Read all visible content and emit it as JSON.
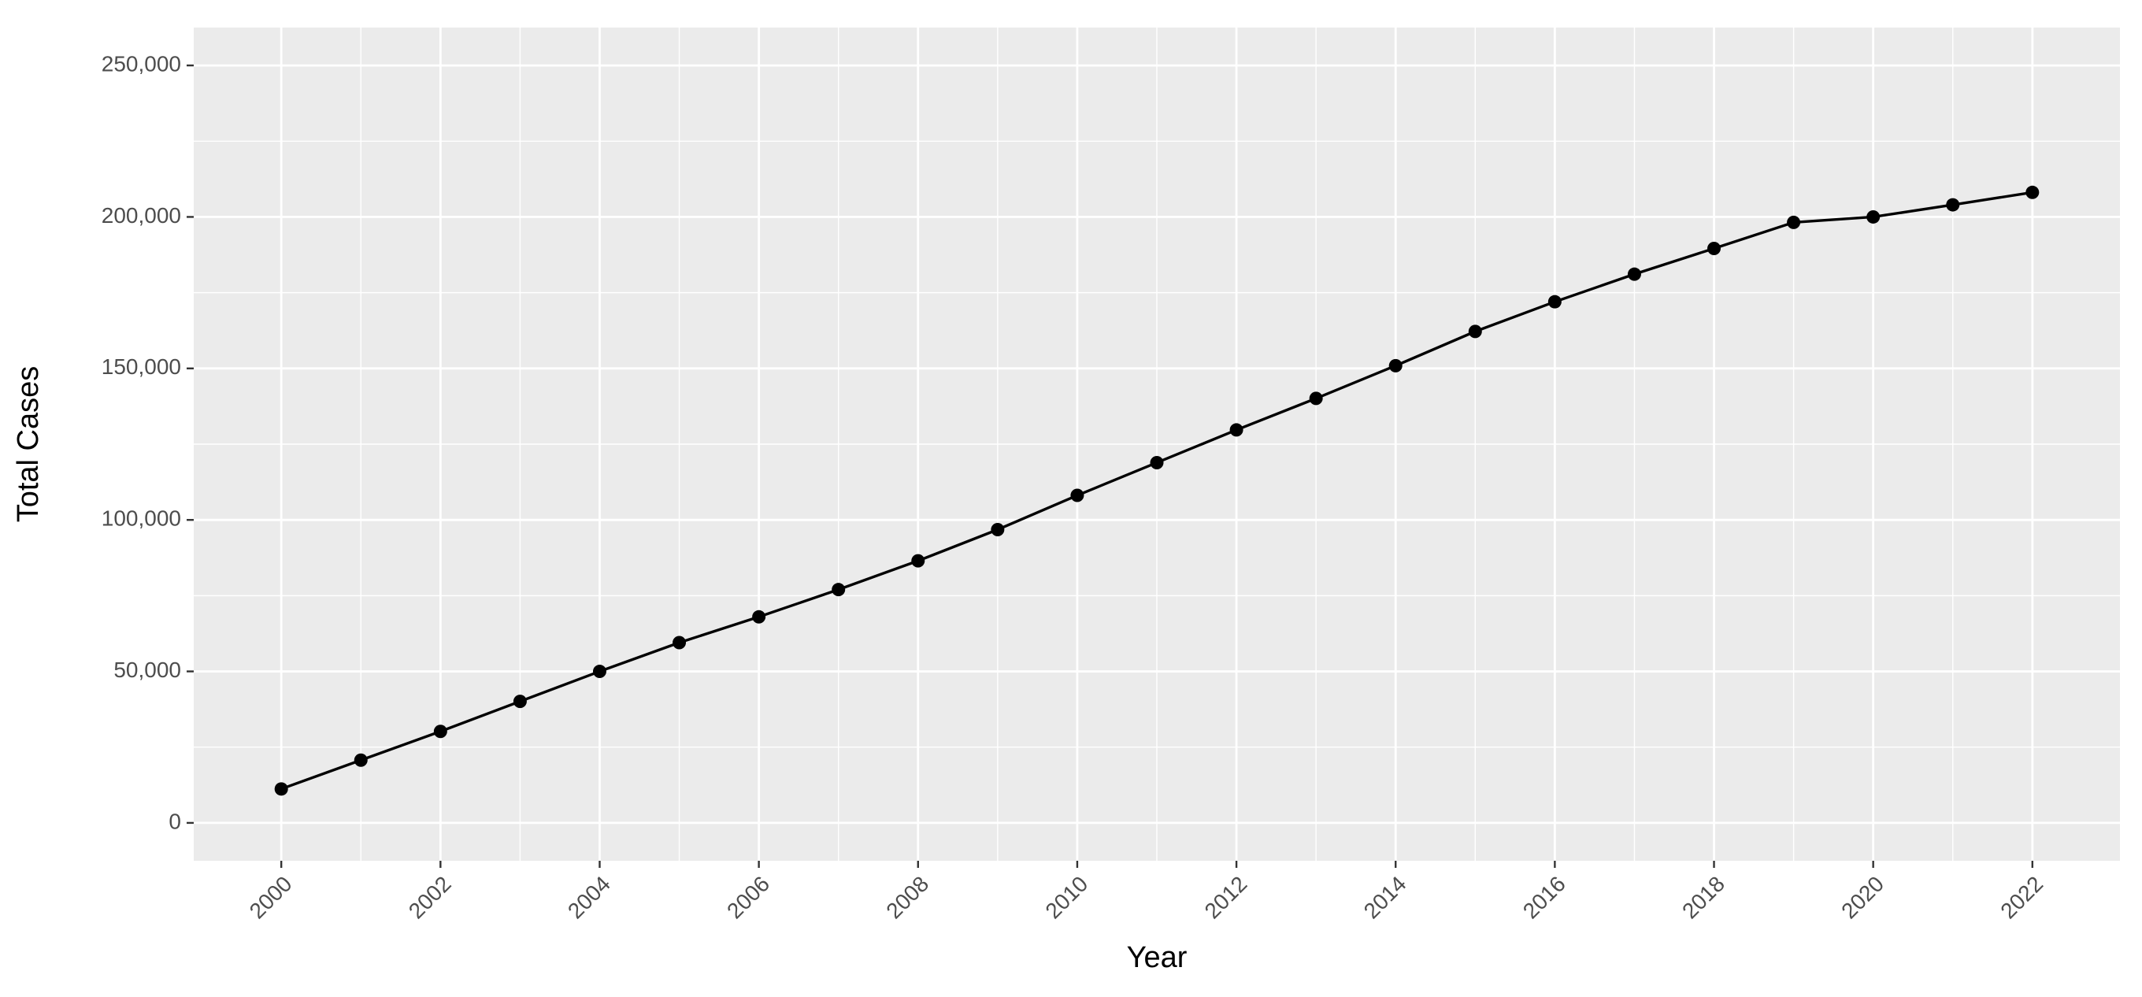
{
  "chart_data": {
    "type": "line",
    "x_label": "Year",
    "y_label": "Total Cases",
    "x": [
      2000,
      2001,
      2002,
      2003,
      2004,
      2005,
      2006,
      2007,
      2008,
      2009,
      2010,
      2011,
      2012,
      2013,
      2014,
      2015,
      2016,
      2017,
      2018,
      2019,
      2020,
      2021,
      2022
    ],
    "values": [
      11200,
      20700,
      30200,
      40100,
      50000,
      59500,
      68000,
      77000,
      86500,
      96800,
      108100,
      118900,
      129700,
      140100,
      150900,
      162200,
      172000,
      181100,
      189600,
      198200,
      200000,
      204000,
      208100
    ],
    "color": "#000000",
    "xlim": [
      1998.9,
      2023.1
    ],
    "xticks": [
      2000,
      2002,
      2004,
      2006,
      2008,
      2010,
      2012,
      2014,
      2016,
      2018,
      2020,
      2022
    ],
    "ylim": [
      -12500,
      262500
    ],
    "yticks": [
      0,
      {
        "value": 50000,
        "label": "50,000"
      },
      {
        "value": 100000,
        "label": "100,000"
      },
      {
        "value": 150000,
        "label": "150,000"
      },
      {
        "value": 200000,
        "label": "200,000"
      },
      {
        "value": 250000,
        "label": "250,000"
      }
    ],
    "grid": true
  }
}
